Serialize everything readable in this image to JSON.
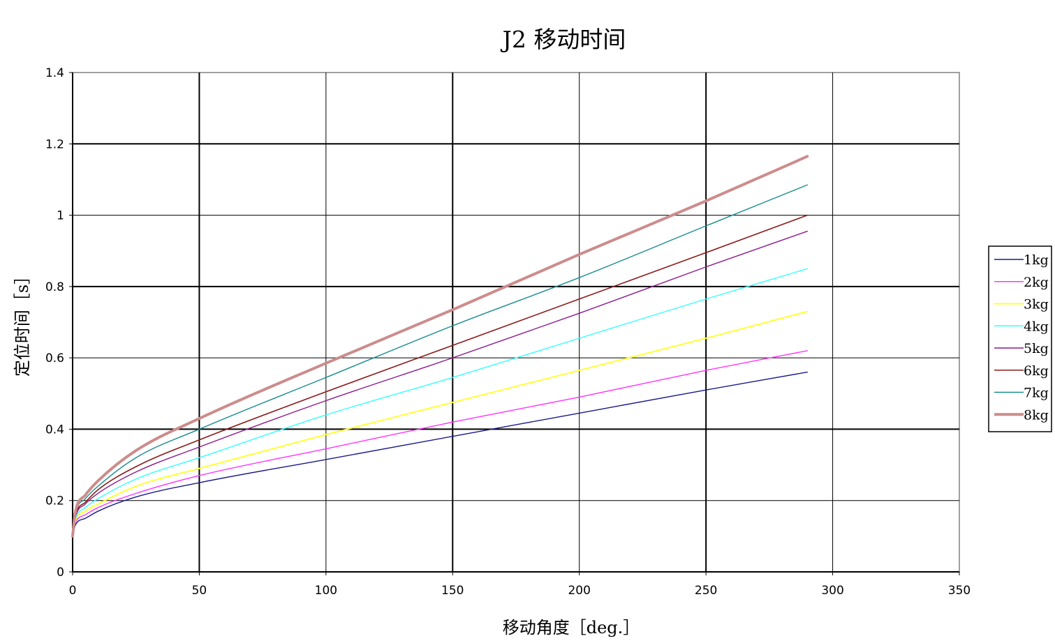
{
  "chart_data": {
    "type": "line",
    "title": "J2 移动时间",
    "xlabel": "移动角度［deg.］",
    "ylabel": "定位时间［s］",
    "xlim": [
      0,
      350
    ],
    "ylim": [
      0,
      1.4
    ],
    "x_ticks": [
      "0",
      "50",
      "100",
      "150",
      "200",
      "250",
      "300",
      "350"
    ],
    "y_ticks": [
      "0",
      "0.2",
      "0.4",
      "0.6",
      "0.8",
      "1",
      "1.2",
      "1.4"
    ],
    "grid": true,
    "legend_position": "right",
    "x": [
      0,
      1,
      5,
      10,
      25,
      50,
      100,
      150,
      200,
      250,
      290
    ],
    "series": [
      {
        "name": "1kg",
        "color": "#1a1a8c",
        "width": 1.4,
        "values": [
          0.1,
          0.13,
          0.15,
          0.17,
          0.21,
          0.25,
          0.315,
          0.38,
          0.445,
          0.51,
          0.56
        ]
      },
      {
        "name": "2kg",
        "color": "#ff33ff",
        "width": 1.4,
        "values": [
          0.1,
          0.135,
          0.16,
          0.18,
          0.22,
          0.27,
          0.345,
          0.42,
          0.49,
          0.565,
          0.62
        ]
      },
      {
        "name": "3kg",
        "color": "#ffff33",
        "width": 2,
        "values": [
          0.1,
          0.14,
          0.17,
          0.19,
          0.24,
          0.29,
          0.385,
          0.475,
          0.565,
          0.655,
          0.73
        ]
      },
      {
        "name": "4kg",
        "color": "#33ffff",
        "width": 1.4,
        "values": [
          0.1,
          0.145,
          0.18,
          0.205,
          0.26,
          0.32,
          0.44,
          0.545,
          0.655,
          0.765,
          0.85
        ]
      },
      {
        "name": "5kg",
        "color": "#8c1a8c",
        "width": 1.4,
        "values": [
          0.1,
          0.15,
          0.19,
          0.22,
          0.28,
          0.35,
          0.48,
          0.6,
          0.725,
          0.855,
          0.955
        ]
      },
      {
        "name": "6kg",
        "color": "#8c1a1a",
        "width": 1.6,
        "values": [
          0.1,
          0.155,
          0.195,
          0.23,
          0.295,
          0.37,
          0.505,
          0.635,
          0.765,
          0.895,
          1.0
        ]
      },
      {
        "name": "7kg",
        "color": "#1a8c8c",
        "width": 1.4,
        "values": [
          0.1,
          0.16,
          0.205,
          0.24,
          0.32,
          0.4,
          0.545,
          0.69,
          0.825,
          0.97,
          1.085
        ]
      },
      {
        "name": "8kg",
        "color": "#cc8c8c",
        "width": 4,
        "values": [
          0.1,
          0.165,
          0.215,
          0.255,
          0.34,
          0.43,
          0.585,
          0.735,
          0.89,
          1.04,
          1.165
        ]
      }
    ]
  }
}
